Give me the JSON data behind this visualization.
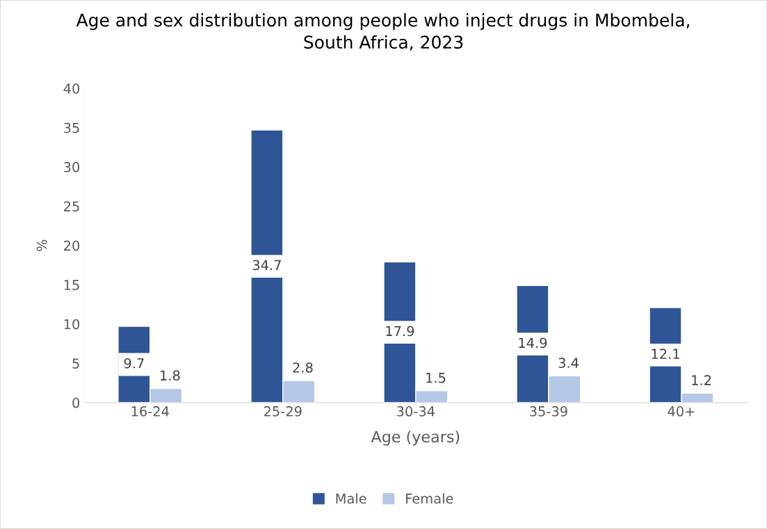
{
  "chart_data": {
    "type": "bar",
    "title": "Age and sex distribution among people who inject drugs in Mbombela,\nSouth Africa, 2023",
    "xlabel": "Age (years)",
    "ylabel": "%",
    "categories": [
      "16-24",
      "25-29",
      "30-34",
      "35-39",
      "40+"
    ],
    "series": [
      {
        "name": "Male",
        "color": "#2f5597",
        "values": [
          9.7,
          34.7,
          17.9,
          14.9,
          12.1
        ]
      },
      {
        "name": "Female",
        "color": "#b4c7e7",
        "values": [
          1.8,
          2.8,
          1.5,
          3.4,
          1.2
        ]
      }
    ],
    "ylim": [
      0,
      40
    ],
    "yticks": [
      0,
      5,
      10,
      15,
      20,
      25,
      30,
      35,
      40
    ],
    "grid": false,
    "legend": "bottom",
    "data_labels": true
  }
}
